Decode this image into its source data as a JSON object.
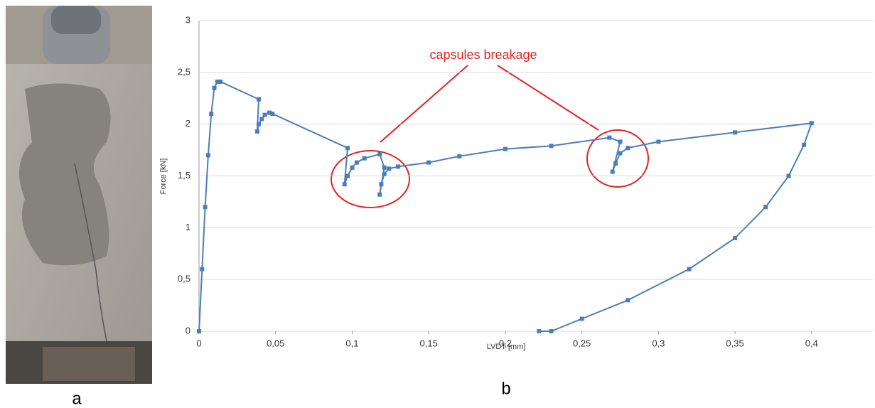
{
  "panel_labels": [
    "a",
    "b"
  ],
  "chart_data": {
    "type": "line",
    "x_label": "LVDT [mm]",
    "y_label": "Force [kN]",
    "annotation": "capsules breakage",
    "xlim": [
      0,
      0.44
    ],
    "ylim": [
      0,
      3
    ],
    "xticks": [
      0,
      {
        "value": 0.05,
        "label": "0,05"
      },
      {
        "value": 0.1,
        "label": "0,1"
      },
      {
        "value": 0.15,
        "label": "0,15"
      },
      {
        "value": 0.2,
        "label": "0,2"
      },
      {
        "value": 0.25,
        "label": "0,25"
      },
      {
        "value": 0.3,
        "label": "0,3"
      },
      {
        "value": 0.35,
        "label": "0,35"
      },
      {
        "value": 0.4,
        "label": "0,4"
      }
    ],
    "yticks": [
      0,
      {
        "value": 0.5,
        "label": "0,5"
      },
      1,
      {
        "value": 1.5,
        "label": "1,5"
      },
      2,
      {
        "value": 2.5,
        "label": "2,5"
      },
      3
    ],
    "grid": true,
    "series": [
      {
        "color": "#4a7ebb",
        "x": [
          0,
          0.002,
          0.004,
          0.006,
          0.008,
          0.01,
          0.012,
          0.014,
          0.039,
          0.038,
          0.039,
          0.041,
          0.043,
          0.046,
          0.048,
          0.097,
          0.095,
          0.097,
          0.1,
          0.103,
          0.108,
          0.118,
          0.121,
          0.118,
          0.119,
          0.121,
          0.124,
          0.13,
          0.15,
          0.17,
          0.2,
          0.23,
          0.268,
          0.275,
          0.27,
          0.272,
          0.275,
          0.28,
          0.3,
          0.35,
          0.4,
          0.395,
          0.385,
          0.37,
          0.35,
          0.32,
          0.28,
          0.25,
          0.23,
          0.222
        ],
        "values": [
          0,
          0.6,
          1.2,
          1.7,
          2.1,
          2.35,
          2.41,
          2.41,
          2.24,
          1.93,
          2.0,
          2.05,
          2.09,
          2.11,
          2.1,
          1.77,
          1.42,
          1.5,
          1.58,
          1.63,
          1.67,
          1.71,
          1.58,
          1.32,
          1.42,
          1.52,
          1.57,
          1.59,
          1.63,
          1.69,
          1.76,
          1.79,
          1.87,
          1.83,
          1.54,
          1.62,
          1.72,
          1.77,
          1.83,
          1.92,
          2.01,
          1.8,
          1.5,
          1.2,
          0.9,
          0.6,
          0.3,
          0.12,
          0,
          0
        ]
      }
    ]
  }
}
